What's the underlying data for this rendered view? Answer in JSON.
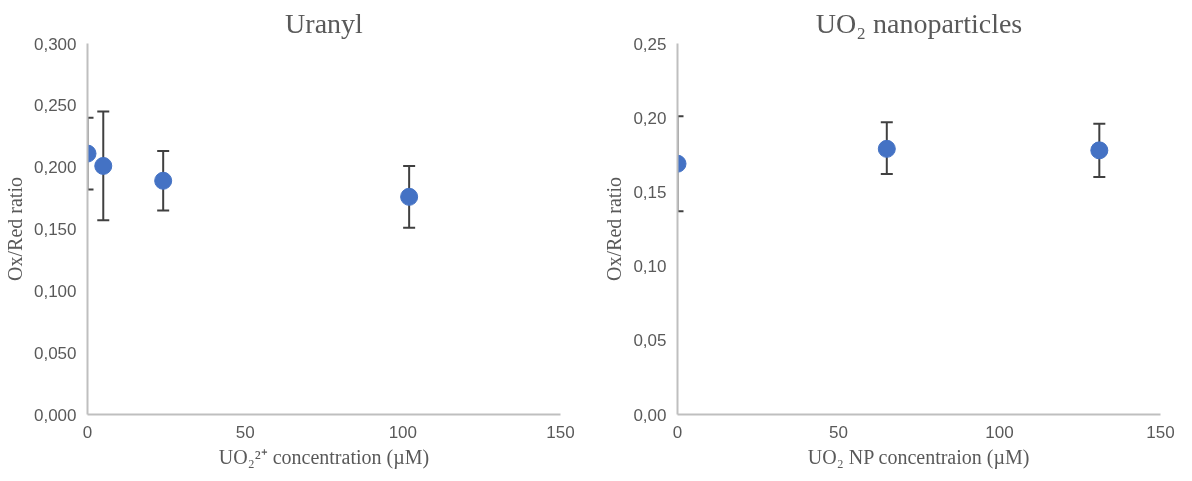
{
  "chart_data": [
    {
      "type": "scatter",
      "title": "Uranyl",
      "xlabel": "UO₂²⁺ concentration (µM)",
      "ylabel": "Ox/Red ratio",
      "marker": "circle",
      "grid": false,
      "series": [
        {
          "color": "#4472c4",
          "x": [
            0,
            5,
            24,
            102
          ],
          "values": [
            0.211,
            0.201,
            0.189,
            0.176
          ],
          "errors": [
            [
              0.182,
              0.24
            ],
            [
              0.157,
              0.245
            ],
            [
              0.165,
              0.213
            ],
            [
              0.151,
              0.201
            ]
          ]
        }
      ],
      "xlim": [
        0,
        150
      ],
      "xticks": [
        0,
        50,
        100,
        150
      ],
      "ylim": [
        0,
        0.3
      ],
      "yticks": [
        {
          "value": 0,
          "label": "0,000"
        },
        {
          "value": 0.05,
          "label": "0,050"
        },
        {
          "value": 0.1,
          "label": "0,100"
        },
        {
          "value": 0.15,
          "label": "0,150"
        },
        {
          "value": 0.2,
          "label": "0,200"
        },
        {
          "value": 0.25,
          "label": "0,250"
        },
        {
          "value": 0.3,
          "label": "0,300"
        }
      ]
    },
    {
      "type": "scatter",
      "title": "UO₂ nanoparticles",
      "xlabel": "UO₂ NP concentraion (µM)",
      "ylabel": "Ox/Red ratio",
      "marker": "circle",
      "grid": false,
      "series": [
        {
          "color": "#4472c4",
          "x": [
            0,
            65,
            131
          ],
          "values": [
            0.169,
            0.179,
            0.178
          ],
          "errors": [
            [
              0.137,
              0.201
            ],
            [
              0.162,
              0.197
            ],
            [
              0.16,
              0.196
            ]
          ]
        }
      ],
      "xlim": [
        0,
        150
      ],
      "xticks": [
        0,
        50,
        100,
        150
      ],
      "ylim": [
        0,
        0.25
      ],
      "yticks": [
        {
          "value": 0,
          "label": "0,00"
        },
        {
          "value": 0.05,
          "label": "0,05"
        },
        {
          "value": 0.1,
          "label": "0,10"
        },
        {
          "value": 0.15,
          "label": "0,15"
        },
        {
          "value": 0.2,
          "label": "0,20"
        },
        {
          "value": 0.25,
          "label": "0,25"
        }
      ]
    }
  ]
}
